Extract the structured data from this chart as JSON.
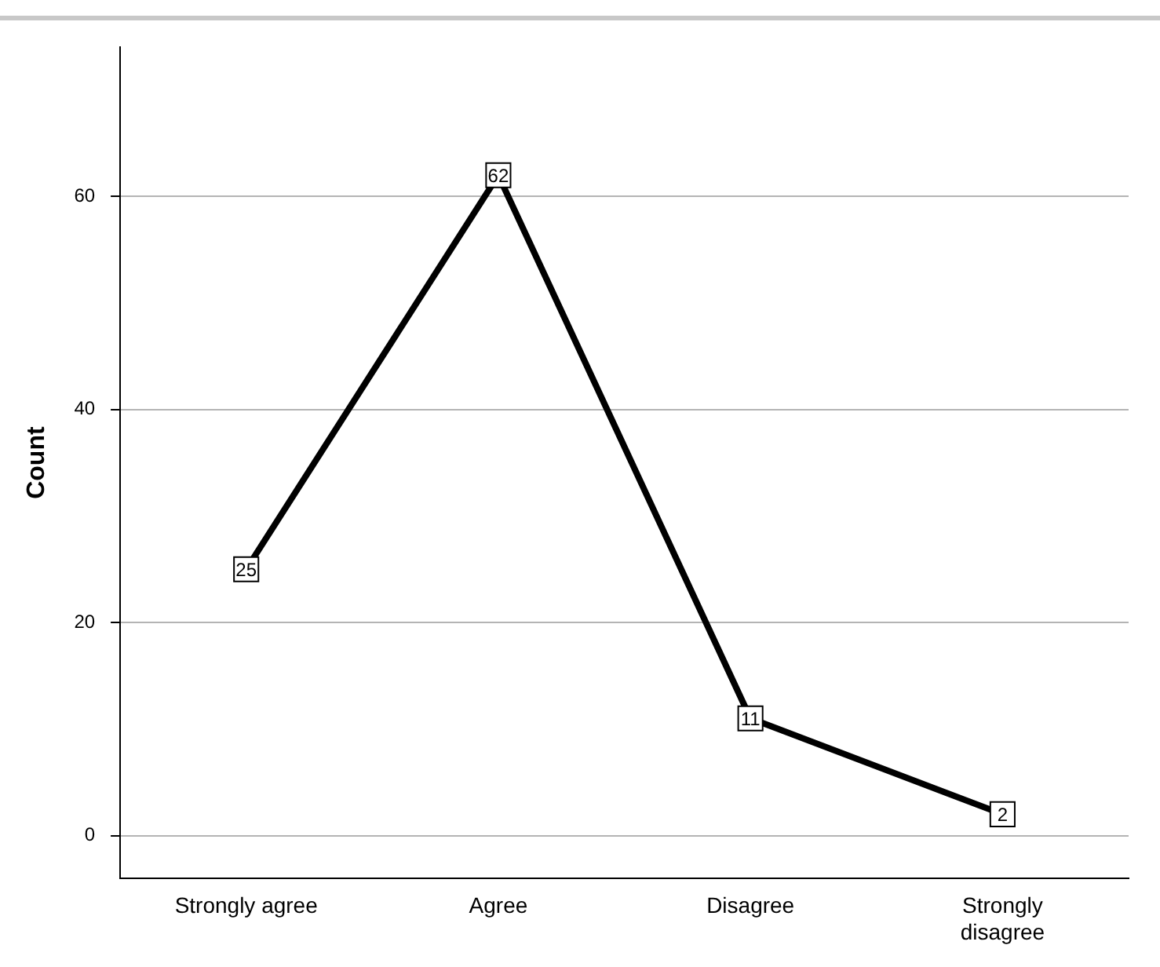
{
  "chart_data": {
    "type": "line",
    "ylabel": "Count",
    "categories": [
      "Strongly agree",
      "Agree",
      "Disagree",
      "Strongly disagree"
    ],
    "series": [
      {
        "color": "#000000",
        "values": [
          25,
          62,
          11,
          2
        ]
      }
    ],
    "ylim": [
      -4,
      74
    ],
    "yticks": [
      0,
      20,
      40,
      60
    ],
    "grid": "y",
    "legend": false,
    "marker": "square",
    "line_style": "solid",
    "data_labels": true
  }
}
